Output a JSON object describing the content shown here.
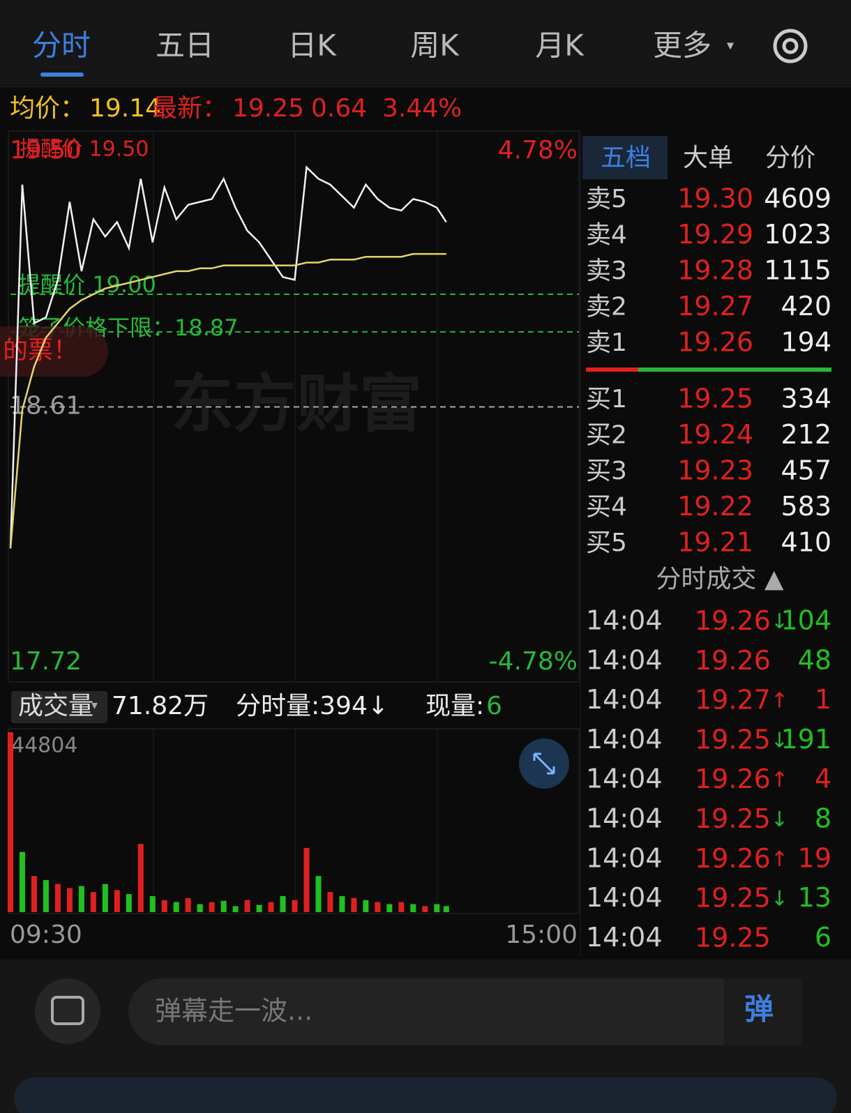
{
  "tabs": [
    "分时",
    "五日",
    "日K",
    "周K",
    "月K",
    "更多"
  ],
  "quote": {
    "avg_label": "均价：",
    "avg": "19.14",
    "latest_label": "最新：",
    "latest": "19.25",
    "change": "0.64",
    "change_pct": "3.44%"
  },
  "chart_data": {
    "type": "line",
    "x": [
      "09:30",
      "09:35",
      "09:40",
      "09:45",
      "09:50",
      "09:55",
      "10:00",
      "10:05",
      "10:10",
      "10:15",
      "10:20",
      "10:25",
      "10:30",
      "10:35",
      "10:40",
      "10:45",
      "10:50",
      "10:55",
      "11:00",
      "11:05",
      "11:10",
      "11:15",
      "11:20",
      "11:25",
      "11:30",
      "13:05",
      "13:10",
      "13:15",
      "13:20",
      "13:25",
      "13:30",
      "13:35",
      "13:40",
      "13:45",
      "13:50",
      "13:55",
      "14:00",
      "14:04"
    ],
    "series": [
      {
        "color": "#f2f2f2",
        "values": [
          18.12,
          19.38,
          18.9,
          18.92,
          19.05,
          19.32,
          19.08,
          19.26,
          19.2,
          19.25,
          19.16,
          19.4,
          19.18,
          19.37,
          19.26,
          19.31,
          19.32,
          19.33,
          19.4,
          19.3,
          19.22,
          19.18,
          19.12,
          19.06,
          19.05,
          19.44,
          19.4,
          19.38,
          19.34,
          19.3,
          19.38,
          19.33,
          19.3,
          19.29,
          19.33,
          19.32,
          19.3,
          19.25
        ]
      },
      {
        "color": "#e8d36a",
        "values": [
          18.12,
          18.6,
          18.75,
          18.85,
          18.9,
          18.95,
          18.98,
          19.0,
          19.02,
          19.03,
          19.04,
          19.05,
          19.06,
          19.07,
          19.08,
          19.08,
          19.09,
          19.09,
          19.1,
          19.1,
          19.1,
          19.1,
          19.1,
          19.1,
          19.1,
          19.11,
          19.11,
          19.12,
          19.12,
          19.12,
          19.13,
          19.13,
          19.13,
          19.13,
          19.14,
          19.14,
          19.14,
          19.14
        ]
      }
    ],
    "xlim": [
      "09:30",
      "15:00"
    ],
    "xticks": [
      "09:30",
      "15:00"
    ],
    "ylim": [
      17.72,
      19.5
    ],
    "yticks": [
      {
        "value": 19.5,
        "label": "19.50"
      },
      18.61,
      17.72
    ],
    "y2lim": [
      -4.78,
      4.78
    ],
    "y2ticks": [
      {
        "value": 4.78,
        "label": "4.78%"
      },
      {
        "value": -4.78,
        "label": "-4.78%"
      }
    ],
    "top_alert": "提醒价 19.50",
    "alerts": [
      {
        "label": "提醒价 ",
        "value": 19.0,
        "value_label": "19.00",
        "color": "#27b83a"
      },
      {
        "label": "笼子价格下限：",
        "value": 18.87,
        "color": "#27b83a"
      }
    ],
    "banner": "的票！",
    "watermark": "东方财富"
  },
  "volume": {
    "label": "成交量",
    "total": "71.82万",
    "minute_label": "分时量:394↓",
    "current_label": "现量:",
    "current": "6",
    "ylim": [
      0,
      44804
    ],
    "yticks": [
      44804
    ],
    "values": [
      44804,
      15000,
      9000,
      8000,
      7000,
      6000,
      6500,
      5000,
      7000,
      5500,
      4500,
      17000,
      4000,
      3000,
      2500,
      3500,
      2000,
      2500,
      2800,
      1500,
      3000,
      1800,
      2500,
      4000,
      3000,
      16000,
      9000,
      5000,
      4000,
      3500,
      3000,
      2500,
      2000,
      2500,
      2000,
      1500,
      2000,
      1500
    ],
    "colors": [
      "#e02020",
      "#20c020",
      "#e02020",
      "#20c020",
      "#e02020",
      "#e02020",
      "#20c020",
      "#e02020",
      "#20c020",
      "#e02020",
      "#20c020",
      "#e02020",
      "#20c020",
      "#e02020",
      "#20c020",
      "#e02020",
      "#20c020",
      "#e02020",
      "#20c020",
      "#20c020",
      "#e02020",
      "#20c020",
      "#e02020",
      "#20c020",
      "#e02020",
      "#e02020",
      "#20c020",
      "#e02020",
      "#20c020",
      "#e02020",
      "#20c020",
      "#e02020",
      "#20c020",
      "#e02020",
      "#20c020",
      "#e02020",
      "#20c020",
      "#20c020"
    ]
  },
  "order_book": {
    "tabs": [
      "五档",
      "大单",
      "分价"
    ],
    "asks": [
      [
        "卖5",
        "19.30",
        "4609"
      ],
      [
        "卖4",
        "19.29",
        "1023"
      ],
      [
        "卖3",
        "19.28",
        "1115"
      ],
      [
        "卖2",
        "19.27",
        "420"
      ],
      [
        "卖1",
        "19.26",
        "194"
      ]
    ],
    "bids": [
      [
        "买1",
        "19.25",
        "334"
      ],
      [
        "买2",
        "19.24",
        "212"
      ],
      [
        "买3",
        "19.23",
        "457"
      ],
      [
        "买4",
        "19.22",
        "583"
      ],
      [
        "买5",
        "19.21",
        "410"
      ]
    ]
  },
  "trades": {
    "title": "分时成交 ▲",
    "rows": [
      {
        "time": "14:04",
        "price": "19.26",
        "dir": "↓",
        "volume": "104",
        "color": "#20c020"
      },
      {
        "time": "14:04",
        "price": "19.26",
        "dir": "",
        "volume": "48",
        "color": "#20c020"
      },
      {
        "time": "14:04",
        "price": "19.27",
        "dir": "↑",
        "volume": "1",
        "color": "#e02020"
      },
      {
        "time": "14:04",
        "price": "19.25",
        "dir": "↓",
        "volume": "191",
        "color": "#20c020"
      },
      {
        "time": "14:04",
        "price": "19.26",
        "dir": "↑",
        "volume": "4",
        "color": "#e02020"
      },
      {
        "time": "14:04",
        "price": "19.25",
        "dir": "↓",
        "volume": "8",
        "color": "#20c020"
      },
      {
        "time": "14:04",
        "price": "19.26",
        "dir": "↑",
        "volume": "19",
        "color": "#e02020"
      },
      {
        "time": "14:04",
        "price": "19.25",
        "dir": "↓",
        "volume": "13",
        "color": "#20c020"
      },
      {
        "time": "14:04",
        "price": "19.25",
        "dir": "",
        "volume": "6",
        "color": "#20c020"
      }
    ]
  },
  "bottom": {
    "placeholder": "弹幕走一波...",
    "button": "弹"
  }
}
